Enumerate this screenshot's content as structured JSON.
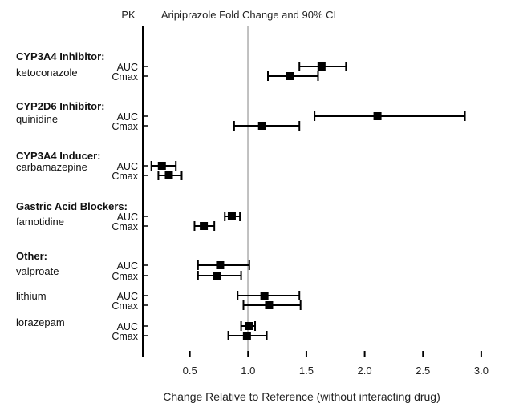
{
  "chart_data": {
    "type": "forest",
    "title": "Aripiprazole Fold Change and 90% CI",
    "column_header": "PK",
    "xlabel": "Change Relative to Reference (without interacting drug)",
    "xlim": [
      0.1,
      3.0
    ],
    "xticks": [
      "0.5",
      "1.0",
      "1.5",
      "2.0",
      "2.5",
      "3.0"
    ],
    "reference_line": 1.0,
    "groups": [
      {
        "heading": "CYP3A4 Inhibitor:",
        "drug": "ketoconazole",
        "rows": [
          {
            "pk": "AUC",
            "estimate": 1.63,
            "ci": [
              1.44,
              1.84
            ]
          },
          {
            "pk": "Cmax",
            "estimate": 1.36,
            "ci": [
              1.17,
              1.6
            ]
          }
        ]
      },
      {
        "heading": "CYP2D6 Inhibitor:",
        "drug": "quinidine",
        "rows": [
          {
            "pk": "AUC",
            "estimate": 2.11,
            "ci": [
              1.57,
              2.86
            ]
          },
          {
            "pk": "Cmax",
            "estimate": 1.12,
            "ci": [
              0.88,
              1.44
            ]
          }
        ]
      },
      {
        "heading": "CYP3A4 Inducer:",
        "drug": "carbamazepine",
        "rows": [
          {
            "pk": "AUC",
            "estimate": 0.26,
            "ci": [
              0.17,
              0.38
            ]
          },
          {
            "pk": "Cmax",
            "estimate": 0.32,
            "ci": [
              0.23,
              0.43
            ]
          }
        ]
      },
      {
        "heading": "Gastric Acid Blockers:",
        "drug": "famotidine",
        "rows": [
          {
            "pk": "AUC",
            "estimate": 0.86,
            "ci": [
              0.8,
              0.93
            ]
          },
          {
            "pk": "Cmax",
            "estimate": 0.62,
            "ci": [
              0.54,
              0.71
            ]
          }
        ]
      },
      {
        "heading": "Other:",
        "drug": "valproate",
        "rows": [
          {
            "pk": "AUC",
            "estimate": 0.76,
            "ci": [
              0.57,
              1.01
            ]
          },
          {
            "pk": "Cmax",
            "estimate": 0.73,
            "ci": [
              0.57,
              0.94
            ]
          }
        ]
      },
      {
        "heading": "",
        "drug": "lithium",
        "rows": [
          {
            "pk": "AUC",
            "estimate": 1.14,
            "ci": [
              0.91,
              1.44
            ]
          },
          {
            "pk": "Cmax",
            "estimate": 1.18,
            "ci": [
              0.96,
              1.45
            ]
          }
        ]
      },
      {
        "heading": "",
        "drug": "lorazepam",
        "rows": [
          {
            "pk": "AUC",
            "estimate": 1.01,
            "ci": [
              0.94,
              1.06
            ]
          },
          {
            "pk": "Cmax",
            "estimate": 0.99,
            "ci": [
              0.83,
              1.16
            ]
          }
        ]
      }
    ],
    "colors": {
      "marks": "#000000",
      "reference_line": "#c0c0c0"
    }
  }
}
